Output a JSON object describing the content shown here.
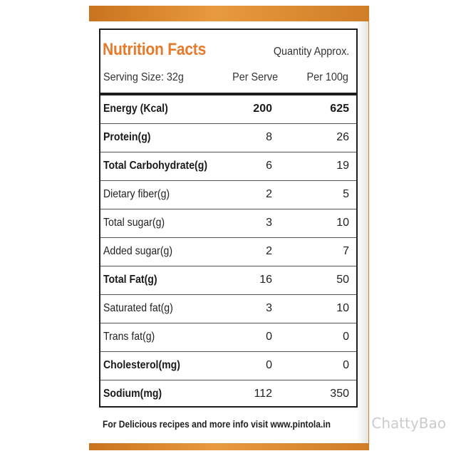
{
  "panel": {
    "title": "Nutrition Facts",
    "quantity_note": "Quantity Approx.",
    "serving_size": "Serving Size: 32g",
    "col_per_serve": "Per Serve",
    "col_per_100g": "Per 100g"
  },
  "rows": [
    {
      "name": "Energy (Kcal)",
      "per_serve": "200",
      "per_100g": "625"
    },
    {
      "name": "Protein(g)",
      "per_serve": "8",
      "per_100g": "26"
    },
    {
      "name": "Total Carbohydrate(g)",
      "per_serve": "6",
      "per_100g": "19"
    },
    {
      "name": "Dietary fiber(g)",
      "per_serve": "2",
      "per_100g": "5"
    },
    {
      "name": "Total sugar(g)",
      "per_serve": "3",
      "per_100g": "10"
    },
    {
      "name": "Added sugar(g)",
      "per_serve": "2",
      "per_100g": "7"
    },
    {
      "name": "Total Fat(g)",
      "per_serve": "16",
      "per_100g": "50"
    },
    {
      "name": "Saturated fat(g)",
      "per_serve": "3",
      "per_100g": "10"
    },
    {
      "name": "Trans fat(g)",
      "per_serve": "0",
      "per_100g": "0"
    },
    {
      "name": "Cholesterol(mg)",
      "per_serve": "0",
      "per_100g": "0"
    },
    {
      "name": "Sodium(mg)",
      "per_serve": "112",
      "per_100g": "350"
    }
  ],
  "footer": "For Delicious recipes and more info visit www.pintola.in",
  "watermark": "ChattyBao",
  "colors": {
    "title": "#e57a2a",
    "jar": "#e0903a"
  }
}
